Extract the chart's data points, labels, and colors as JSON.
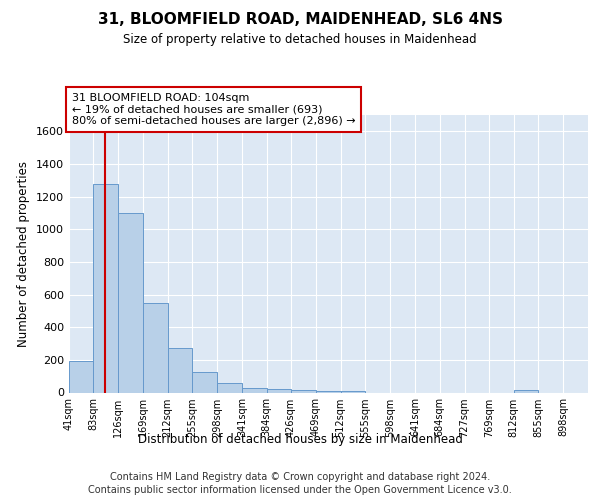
{
  "title": "31, BLOOMFIELD ROAD, MAIDENHEAD, SL6 4NS",
  "subtitle": "Size of property relative to detached houses in Maidenhead",
  "xlabel": "Distribution of detached houses by size in Maidenhead",
  "ylabel": "Number of detached properties",
  "footer_line1": "Contains HM Land Registry data © Crown copyright and database right 2024.",
  "footer_line2": "Contains public sector information licensed under the Open Government Licence v3.0.",
  "annotation_line1": "31 BLOOMFIELD ROAD: 104sqm",
  "annotation_line2": "← 19% of detached houses are smaller (693)",
  "annotation_line3": "80% of semi-detached houses are larger (2,896) →",
  "bar_color": "#b8d0e8",
  "bar_edge_color": "#6699cc",
  "bg_color": "#dde8f4",
  "property_line_color": "#cc0000",
  "property_line_x": 104,
  "categories": [
    "41sqm",
    "83sqm",
    "126sqm",
    "169sqm",
    "212sqm",
    "255sqm",
    "298sqm",
    "341sqm",
    "384sqm",
    "426sqm",
    "469sqm",
    "512sqm",
    "555sqm",
    "598sqm",
    "641sqm",
    "684sqm",
    "727sqm",
    "769sqm",
    "812sqm",
    "855sqm",
    "898sqm"
  ],
  "bin_edges": [
    41,
    83,
    126,
    169,
    212,
    255,
    298,
    341,
    384,
    426,
    469,
    512,
    555,
    598,
    641,
    684,
    727,
    769,
    812,
    855,
    898,
    941
  ],
  "bar_heights": [
    195,
    1275,
    1100,
    550,
    270,
    125,
    60,
    30,
    20,
    15,
    10,
    10,
    0,
    0,
    0,
    0,
    0,
    0,
    18,
    0,
    0
  ],
  "ylim": [
    0,
    1700
  ],
  "yticks": [
    0,
    200,
    400,
    600,
    800,
    1000,
    1200,
    1400,
    1600
  ]
}
